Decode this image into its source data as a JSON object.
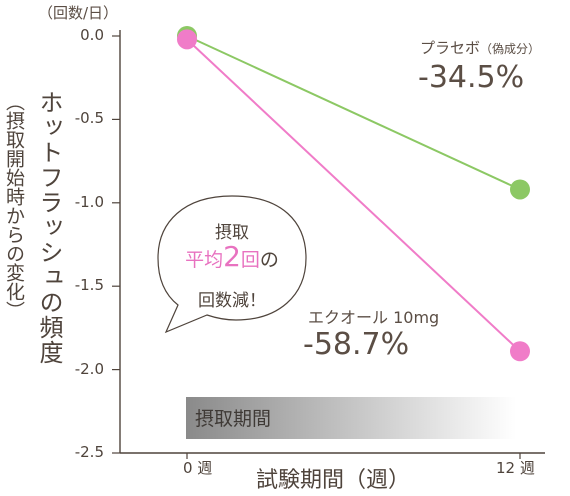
{
  "unit_label": "（回数/日）",
  "y_label_main": "ホットフラッシュの頻度",
  "y_label_sub": "（摂取開始時からの変化）",
  "x_label": "試験期間（週）",
  "callout": {
    "line1": "摂取",
    "line2_pink": "平均",
    "line2_number": "2",
    "line2_suffix_pink": "回",
    "line2_end": "の",
    "line3": "回数減！"
  },
  "period_label": "摂取期間",
  "series_labels": {
    "placebo_name": "プラセボ",
    "placebo_note": "（偽成分）",
    "placebo_value": "-34.5%",
    "equol_name": "エクオール 10mg",
    "equol_value": "-58.7%"
  },
  "colors": {
    "placebo": "#8cc864",
    "equol": "#f07cc8",
    "axis": "#4f443c",
    "period_dark": "#8a8a8a",
    "period_light": "#ffffff"
  },
  "chart_data": {
    "type": "line",
    "x": [
      "0 週",
      "12 週"
    ],
    "ylim": [
      -2.5,
      0.0
    ],
    "yticks": [
      "0.0",
      "-0.5",
      "-1.0",
      "-1.5",
      "-2.0",
      "-2.5"
    ],
    "ytick_values": [
      0.0,
      -0.5,
      -1.0,
      -1.5,
      -2.0,
      -2.5
    ],
    "series": [
      {
        "name": "プラセボ（偽成分）",
        "color": "#8cc864",
        "values": [
          0.0,
          -0.92
        ]
      },
      {
        "name": "エクオール 10mg",
        "color": "#f07cc8",
        "values": [
          -0.02,
          -1.89
        ]
      }
    ],
    "grid": false
  }
}
